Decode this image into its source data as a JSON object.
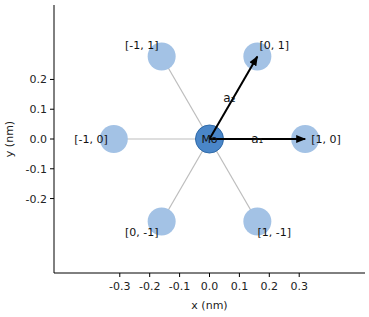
{
  "chart_data": {
    "type": "scatter",
    "x_label": "x (nm)",
    "y_label": "y (nm)",
    "xlim": [
      -0.52,
      0.52
    ],
    "ylim": [
      -0.45,
      0.45
    ],
    "xticks": [
      -0.3,
      -0.2,
      -0.1,
      {
        "value": 0,
        "label": "0.0"
      },
      0.1,
      0.2,
      0.3
    ],
    "yticks": [
      -0.2,
      -0.1,
      {
        "value": 0,
        "label": "0.0"
      },
      0.1,
      0.2
    ],
    "grid": false,
    "center": {
      "x": 0,
      "y": 0,
      "label": "Mo",
      "color": "#4a86c8"
    },
    "points": {
      "x": [
        0.32,
        0.16,
        -0.16,
        -0.32,
        -0.16,
        0.16
      ],
      "y": [
        0,
        0.277,
        0.277,
        0,
        -0.277,
        -0.277
      ],
      "labels": [
        "[1, 0]",
        "[0, 1]",
        "[-1, 1]",
        "[-1, 0]",
        "[0, -1]",
        "[1, -1]"
      ],
      "color": "#a3c2e5"
    },
    "vectors": [
      {
        "label": "a₁",
        "x": 0.32,
        "y": 0
      },
      {
        "label": "a₂",
        "x": 0.16,
        "y": 0.277
      }
    ]
  }
}
